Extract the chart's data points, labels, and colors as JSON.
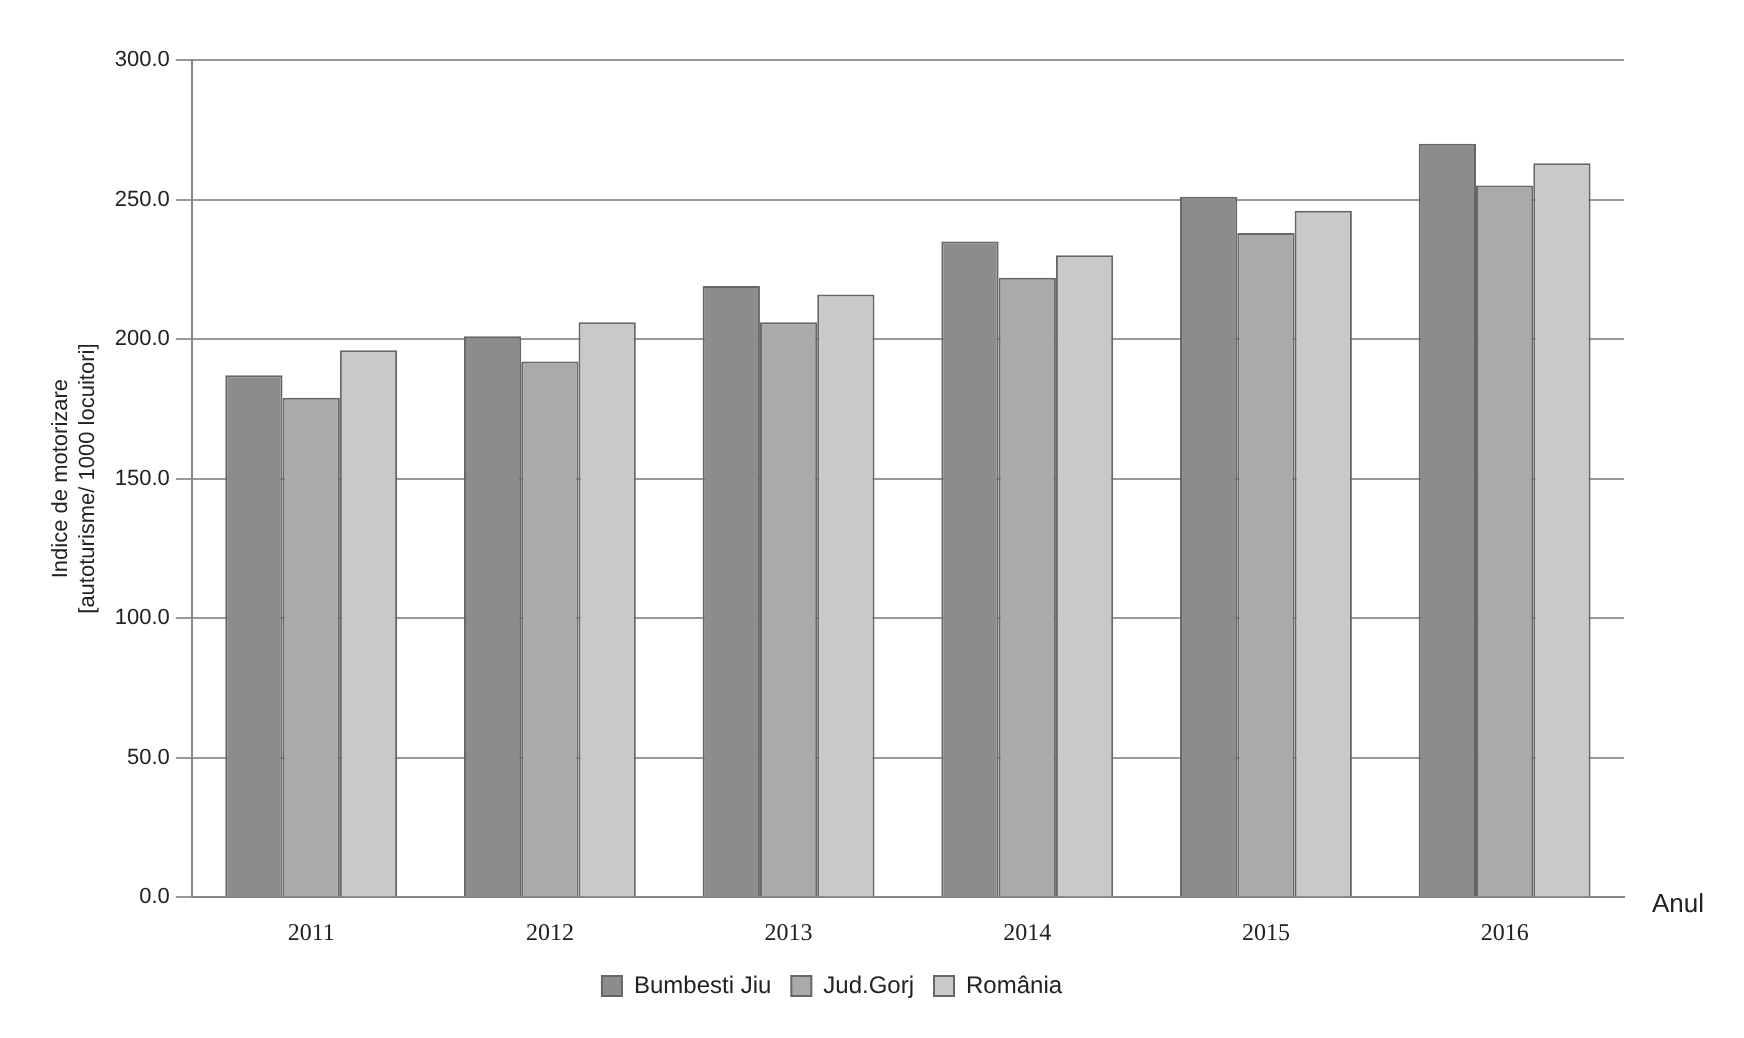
{
  "chart_data": {
    "type": "bar",
    "ylabel": "Indice de motorizare\n[autoturisme/ 1000 locuitori]",
    "xlabel": "Anul",
    "categories": [
      "2011",
      "2012",
      "2013",
      "2014",
      "2015",
      "2016"
    ],
    "series": [
      {
        "name": "Bumbesti Jiu",
        "color": "#8c8c8c",
        "values": [
          187,
          201,
          219,
          235,
          251,
          270
        ]
      },
      {
        "name": "Jud.Gorj",
        "color": "#aaaaaa",
        "values": [
          179,
          192,
          206,
          222,
          238,
          255
        ]
      },
      {
        "name": "România",
        "color": "#c9c9c9",
        "values": [
          196,
          206,
          216,
          230,
          246,
          263
        ]
      }
    ],
    "ylim": [
      0,
      300
    ],
    "yticks": [
      {
        "value": 0,
        "label": "0.0"
      },
      {
        "value": 50,
        "label": "50.0"
      },
      {
        "value": 100,
        "label": "100.0"
      },
      {
        "value": 150,
        "label": "150.0"
      },
      {
        "value": 200,
        "label": "200.0"
      },
      {
        "value": 250,
        "label": "250.0"
      },
      {
        "value": 300,
        "label": "300.0"
      }
    ],
    "grid": "y",
    "legend": "bottom"
  }
}
